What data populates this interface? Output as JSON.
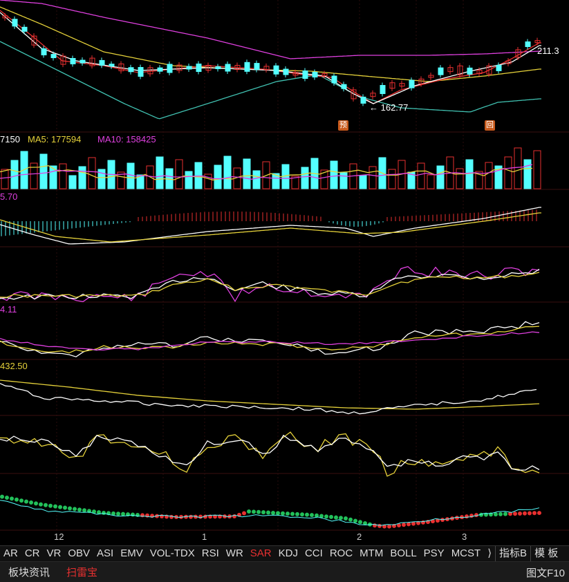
{
  "price_panel": {
    "high_label": "211.3",
    "low_label": "← 162.77",
    "marker_pre": "预",
    "marker_back": "回"
  },
  "volume_panel": {
    "head_value": "7150",
    "ma5_label": "MA5: 177594",
    "ma10_label": "MA10: 158425"
  },
  "macd_panel": {
    "head_value": "5.70"
  },
  "panel4": {
    "head_value": "4.11"
  },
  "panel5": {
    "head_value": "432.50"
  },
  "x_axis": {
    "labels": [
      "12",
      "1",
      "2",
      "3"
    ]
  },
  "indicator_tabs": {
    "items": [
      "AR",
      "CR",
      "VR",
      "OBV",
      "ASI",
      "EMV",
      "VOL-TDX",
      "RSI",
      "WR",
      "SAR",
      "KDJ",
      "CCI",
      "ROC",
      "MTM",
      "BOLL",
      "PSY",
      "MCST",
      "⟩",
      "指标B",
      "模 板"
    ],
    "active": "SAR"
  },
  "bottom_tabs": {
    "items": [
      "板块资讯",
      "扫雷宝"
    ],
    "active": "扫雷宝",
    "right_button": "图文F10"
  },
  "colors": {
    "up": "#e83030",
    "down": "#54ffff",
    "ma_white": "#ffffff",
    "ma_yellow": "#e6d23a",
    "ma_magenta": "#e040e0",
    "boll_cyan": "#40c0b0",
    "sar_green": "#22c05a",
    "sar_red": "#e83030",
    "background": "#000000"
  }
}
